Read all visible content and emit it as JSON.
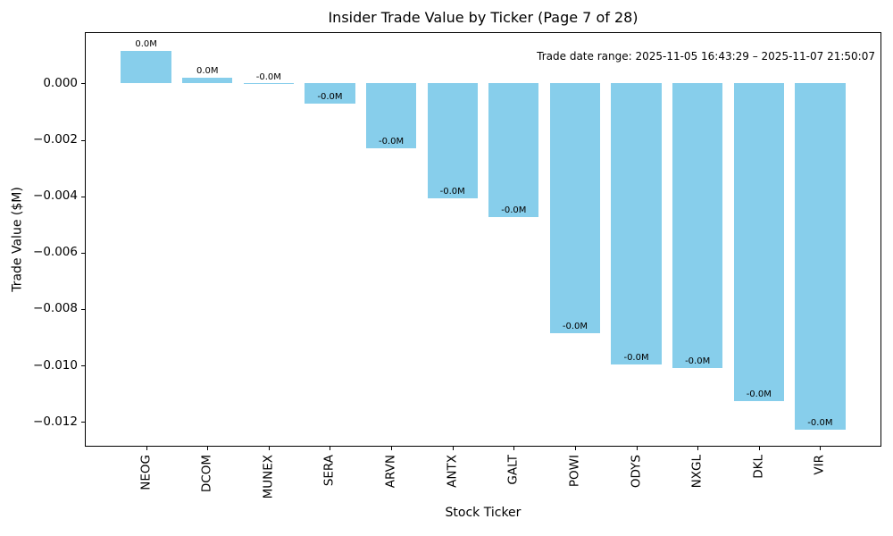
{
  "title": "Insider Trade Value by Ticker (Page 7 of 28)",
  "colors": {
    "bar": "#87CEEB",
    "axis": "#000000",
    "background": "#ffffff",
    "text": "#000000"
  },
  "chart_data": {
    "type": "bar",
    "title": "Insider Trade Value by Ticker (Page 7 of 28)",
    "xlabel": "Stock Ticker",
    "ylabel": "Trade Value ($M)",
    "annotation": "Trade date range: 2025-11-05 16:43:29 – 2025-11-07 21:50:07",
    "categories": [
      "NEOG",
      "DCOM",
      "MUNEX",
      "SERA",
      "ARVN",
      "ANTX",
      "GALT",
      "POWI",
      "ODYS",
      "NXGL",
      "DKL",
      "VIR"
    ],
    "values": [
      0.00115,
      0.00022,
      -2e-05,
      -0.00071,
      -0.00229,
      -0.00406,
      -0.00474,
      -0.00886,
      -0.00997,
      -0.0101,
      -0.01125,
      -0.01228
    ],
    "bar_labels": [
      "0.0M",
      "0.0M",
      "-0.0M",
      "-0.0M",
      "-0.0M",
      "-0.0M",
      "-0.0M",
      "-0.0M",
      "-0.0M",
      "-0.0M",
      "-0.0M",
      "-0.0M"
    ],
    "y_tick_values": [
      0.0,
      -0.002,
      -0.004,
      -0.006,
      -0.008,
      -0.01,
      -0.012
    ],
    "y_tick_labels": [
      "0.000",
      "−0.002",
      "−0.004",
      "−0.006",
      "−0.008",
      "−0.010",
      "−0.012"
    ],
    "ylim": [
      -0.01288,
      0.00182
    ],
    "bar_color": "#87CEEB",
    "grid": false,
    "legend": null
  }
}
